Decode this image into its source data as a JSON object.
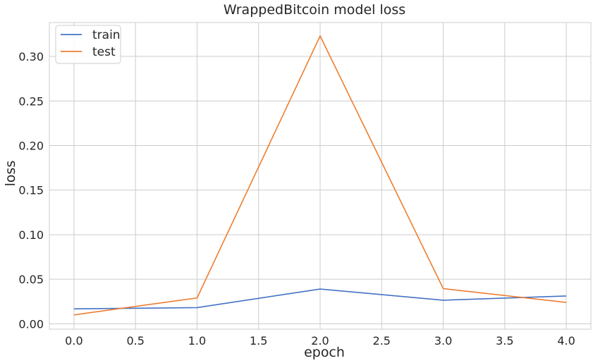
{
  "chart_data": {
    "type": "line",
    "title": "WrappedBitcoin model loss",
    "xlabel": "epoch",
    "ylabel": "loss",
    "x": [
      0,
      1,
      2,
      3,
      4
    ],
    "xlim": [
      -0.2,
      4.2
    ],
    "ylim": [
      -0.006,
      0.338
    ],
    "xticks": [
      0.0,
      0.5,
      1.0,
      1.5,
      2.0,
      2.5,
      3.0,
      3.5,
      4.0
    ],
    "xtick_labels": [
      "0.0",
      "0.5",
      "1.0",
      "1.5",
      "2.0",
      "2.5",
      "3.0",
      "3.5",
      "4.0"
    ],
    "yticks": [
      0.0,
      0.05,
      0.1,
      0.15,
      0.2,
      0.25,
      0.3
    ],
    "ytick_labels": [
      "0.00",
      "0.05",
      "0.10",
      "0.15",
      "0.20",
      "0.25",
      "0.30"
    ],
    "grid": true,
    "legend_position": "top-left",
    "series": [
      {
        "name": "train",
        "color": "#4472c4",
        "values": [
          0.0168,
          0.0182,
          0.039,
          0.0265,
          0.0312
        ]
      },
      {
        "name": "test",
        "color": "#ed7d31",
        "values": [
          0.01,
          0.029,
          0.323,
          0.0395,
          0.024
        ]
      }
    ]
  }
}
